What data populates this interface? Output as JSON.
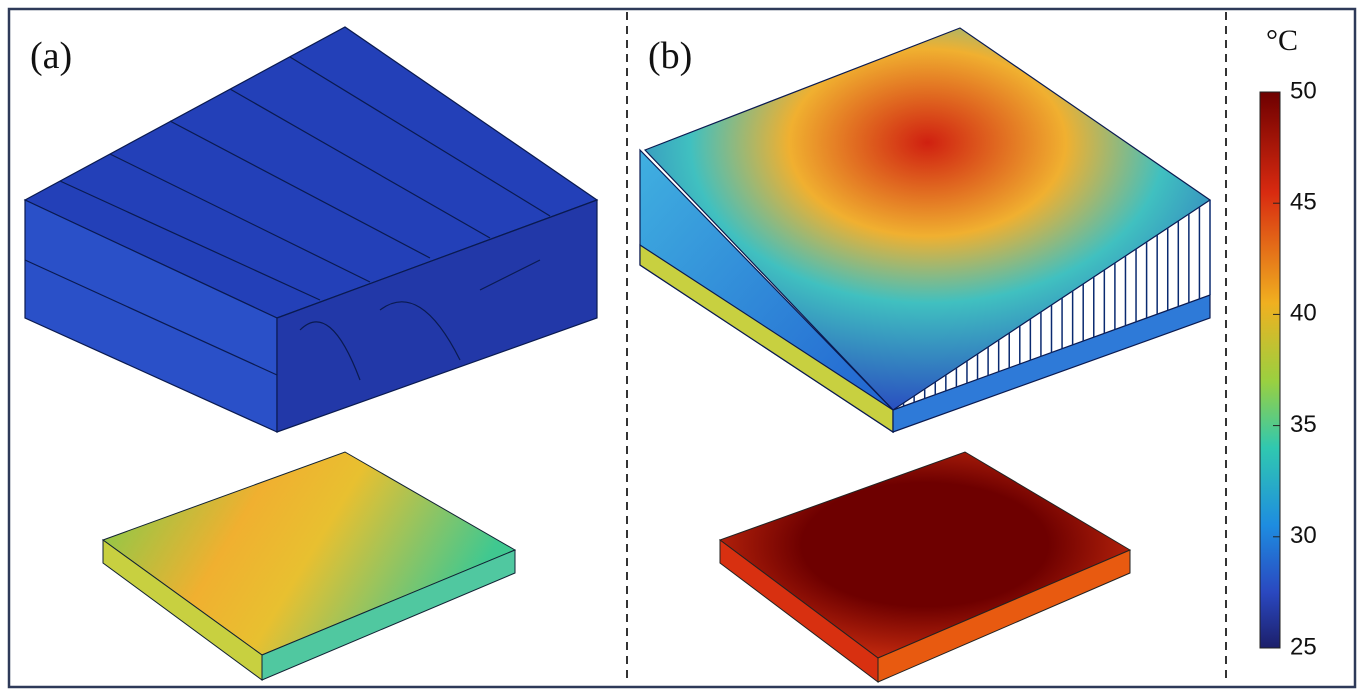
{
  "panels": [
    {
      "label": "(a)"
    },
    {
      "label": "(b)"
    }
  ],
  "colorbar": {
    "unit": "°C",
    "lim": [
      25,
      50
    ],
    "ticks": [
      25,
      30,
      35,
      40,
      45,
      50
    ]
  }
}
